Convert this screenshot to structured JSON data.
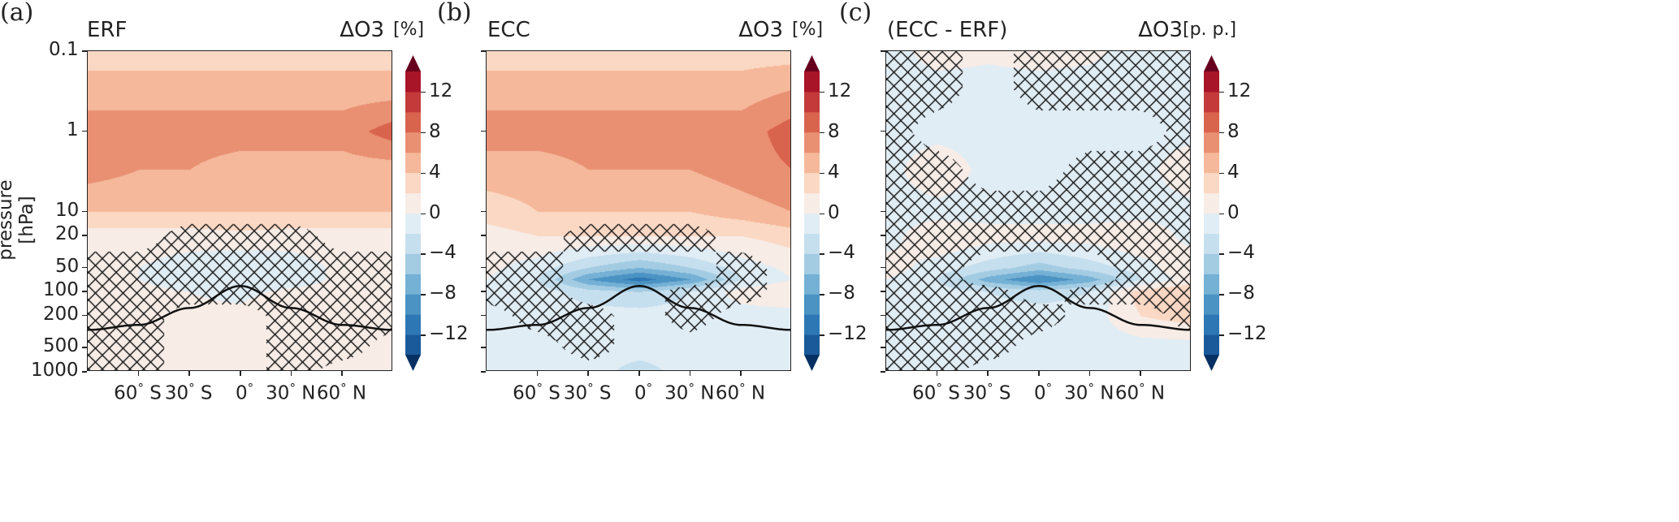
{
  "chart_data": {
    "type": "heatmap",
    "subtype": "filled contour, latitude-pressure cross sections",
    "ylabel": "pressure [hPa]",
    "yscale": "log",
    "ylim": [
      1000,
      0.1
    ],
    "yticks": [
      0.1,
      1,
      10,
      20,
      50,
      100,
      200,
      500,
      1000
    ],
    "ytick_labels": [
      "0.1",
      "1",
      "10",
      "20",
      "50",
      "100",
      "200",
      "500",
      "1000"
    ],
    "xlim": [
      -90,
      90
    ],
    "xticks": [
      -60,
      -30,
      0,
      30,
      60
    ],
    "xtick_labels": [
      [
        "60",
        "S"
      ],
      [
        "30",
        "S"
      ],
      [
        "0",
        ""
      ],
      [
        "30",
        "N"
      ],
      [
        "60",
        "N"
      ]
    ],
    "colorbar": {
      "levels": [
        -14,
        -12,
        -10,
        -8,
        -6,
        -4,
        -2,
        0,
        2,
        4,
        6,
        8,
        10,
        12,
        14
      ],
      "tick_values": [
        12,
        8,
        4,
        0,
        -4,
        -8,
        -12
      ],
      "tick_labels": [
        "12",
        "8",
        "4",
        "0",
        "−4",
        "−8",
        "−12"
      ],
      "colors": [
        "#1a5a9a",
        "#2e77b5",
        "#4b93c3",
        "#75b0d5",
        "#a3cce3",
        "#c6dfee",
        "#e1edf5",
        "#f7ece6",
        "#fbd8c4",
        "#f5b89a",
        "#e99073",
        "#d9644e",
        "#c43a3a",
        "#a81529"
      ],
      "under_color": "#053061",
      "over_color": "#67001f",
      "extend": "both"
    },
    "grid_lats": [
      -90,
      -60,
      -30,
      0,
      30,
      60,
      90
    ],
    "grid_pressures": [
      0.1,
      0.3,
      1,
      3,
      10,
      20,
      50,
      70,
      100,
      200,
      500,
      1000
    ],
    "tropopause": {
      "lats": [
        -90,
        -60,
        -30,
        0,
        30,
        60,
        90
      ],
      "pressure": [
        300,
        260,
        160,
        85,
        160,
        260,
        300
      ]
    },
    "panels": [
      {
        "label": "(a)",
        "title": "ERF",
        "variable": "ΔO3",
        "unit": "[%]",
        "values": [
          [
            3,
            3,
            3,
            3,
            3,
            3,
            3
          ],
          [
            5,
            5,
            5,
            5,
            5,
            5,
            5
          ],
          [
            7,
            7,
            7,
            7,
            7,
            7,
            9
          ],
          [
            7,
            6,
            6,
            5,
            5,
            5,
            5
          ],
          [
            4,
            4,
            4,
            4,
            4,
            4,
            4
          ],
          [
            1,
            1,
            1,
            1.5,
            1,
            1,
            1
          ],
          [
            0.5,
            0,
            -1,
            -2,
            -1,
            0.5,
            0.5
          ],
          [
            0.5,
            0,
            -1,
            -1.5,
            -1,
            0.5,
            0.5
          ],
          [
            0.5,
            0.5,
            0,
            -0.5,
            0.5,
            0.5,
            0.5
          ],
          [
            0.5,
            0.5,
            0.5,
            0.5,
            2,
            0.5,
            0.5
          ],
          [
            0.5,
            0.5,
            0.5,
            0.5,
            0.5,
            0.5,
            0.5
          ],
          [
            0.5,
            0.5,
            0.5,
            0.5,
            0.5,
            0.5,
            0.5
          ]
        ],
        "hatch": [
          [
            0,
            0,
            0,
            0,
            0,
            0,
            0
          ],
          [
            0,
            0,
            0,
            0,
            0,
            0,
            0
          ],
          [
            0,
            0,
            0,
            0,
            0,
            0,
            0
          ],
          [
            0,
            0,
            0,
            0,
            0,
            0,
            0
          ],
          [
            0,
            0,
            0,
            0,
            0,
            0,
            0
          ],
          [
            0,
            0,
            1,
            1,
            1,
            0,
            0
          ],
          [
            1,
            1,
            1,
            1,
            1,
            1,
            1
          ],
          [
            1,
            1,
            1,
            1,
            1,
            1,
            1
          ],
          [
            1,
            1,
            1,
            1,
            1,
            1,
            1
          ],
          [
            1,
            1,
            0,
            0,
            1,
            1,
            1
          ],
          [
            1,
            1,
            0,
            0,
            1,
            1,
            0
          ],
          [
            1,
            1,
            0,
            0,
            1,
            0,
            0
          ]
        ]
      },
      {
        "label": "(b)",
        "title": "ECC",
        "variable": "ΔO3",
        "unit": "[%]",
        "values": [
          [
            3,
            3,
            3,
            3,
            3,
            3,
            3
          ],
          [
            5,
            5,
            5,
            5,
            5,
            5,
            6
          ],
          [
            7,
            7,
            7,
            7,
            7,
            7,
            9
          ],
          [
            5,
            5,
            6,
            6,
            6,
            7,
            8
          ],
          [
            3,
            4,
            4,
            4,
            4,
            5,
            6
          ],
          [
            1,
            2,
            2,
            2,
            2,
            2,
            3
          ],
          [
            0.5,
            -1,
            -4,
            -6,
            -4,
            -1,
            0.5
          ],
          [
            0,
            -2,
            -8,
            -11,
            -8,
            -2,
            0
          ],
          [
            -1,
            -1,
            -3,
            -4,
            -2,
            1,
            2
          ],
          [
            -1,
            -1,
            -1,
            -1,
            -1,
            -1,
            -1
          ],
          [
            -1,
            -1,
            -1,
            -1,
            -1,
            -1,
            -1
          ],
          [
            -1,
            -2,
            -1,
            -3,
            -1,
            -1,
            -1
          ]
        ],
        "hatch": [
          [
            0,
            0,
            0,
            0,
            0,
            0,
            0
          ],
          [
            0,
            0,
            0,
            0,
            0,
            0,
            0
          ],
          [
            0,
            0,
            0,
            0,
            0,
            0,
            0
          ],
          [
            0,
            0,
            0,
            0,
            0,
            0,
            0
          ],
          [
            0,
            0,
            0,
            0,
            0,
            0,
            0
          ],
          [
            0,
            0,
            1,
            1,
            1,
            0,
            0
          ],
          [
            1,
            1,
            0,
            0,
            0,
            1,
            0
          ],
          [
            1,
            1,
            0,
            0,
            0,
            1,
            0
          ],
          [
            1,
            1,
            0,
            0,
            1,
            1,
            0
          ],
          [
            0,
            1,
            1,
            0,
            1,
            0,
            0
          ],
          [
            0,
            0,
            1,
            0,
            0,
            0,
            0
          ],
          [
            0,
            0,
            0,
            0,
            0,
            0,
            0
          ]
        ]
      },
      {
        "label": "(c)",
        "title": "(ECC - ERF)",
        "variable": "ΔO3",
        "unit": "[p. p.]",
        "values": [
          [
            -1,
            1,
            0.5,
            1,
            0.5,
            -1,
            -1
          ],
          [
            -1,
            -1,
            -1,
            -1,
            -1,
            -1,
            -1
          ],
          [
            -1,
            -1,
            -1,
            -1,
            -1,
            -1,
            -1
          ],
          [
            -1,
            2,
            -1,
            -1,
            -1,
            -1,
            2
          ],
          [
            -1,
            -1,
            -1,
            -1,
            -1,
            -1,
            -1
          ],
          [
            -1,
            2,
            1,
            1,
            1,
            2,
            -1
          ],
          [
            1,
            -1,
            -3,
            -5,
            -3,
            -1,
            2
          ],
          [
            0,
            -2,
            -7,
            -10,
            -7,
            -2,
            1
          ],
          [
            -1,
            -1,
            -2,
            -3,
            -2,
            3,
            4
          ],
          [
            -1,
            -1,
            -1,
            -1,
            -1,
            2,
            3
          ],
          [
            -1,
            -1,
            -1,
            -1,
            -1,
            -1,
            -1
          ],
          [
            -1,
            -1,
            -1,
            -2,
            -1,
            -1,
            -1
          ]
        ],
        "hatch": [
          [
            1,
            1,
            0,
            1,
            1,
            1,
            1
          ],
          [
            1,
            1,
            0,
            1,
            1,
            1,
            1
          ],
          [
            1,
            0,
            0,
            0,
            0,
            0,
            1
          ],
          [
            1,
            1,
            0,
            0,
            1,
            1,
            1
          ],
          [
            1,
            1,
            1,
            1,
            1,
            1,
            1
          ],
          [
            1,
            1,
            1,
            1,
            1,
            1,
            1
          ],
          [
            1,
            1,
            0,
            0,
            0,
            1,
            1
          ],
          [
            1,
            1,
            0,
            0,
            0,
            1,
            1
          ],
          [
            1,
            1,
            1,
            0,
            1,
            1,
            1
          ],
          [
            1,
            1,
            1,
            1,
            0,
            0,
            1
          ],
          [
            1,
            1,
            1,
            0,
            0,
            0,
            0
          ],
          [
            1,
            1,
            0,
            0,
            0,
            0,
            0
          ]
        ]
      }
    ]
  }
}
